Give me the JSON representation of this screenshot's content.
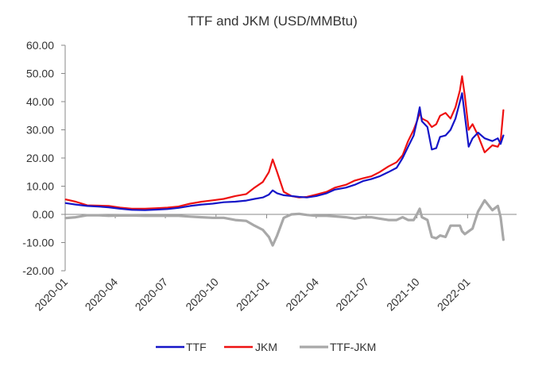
{
  "chart_data": {
    "type": "line",
    "title": "TTF and JKM (USD/MMBtu)",
    "xlabel": "",
    "ylabel": "",
    "ylim": [
      -20,
      60
    ],
    "yticks": [
      60,
      50,
      40,
      30,
      20,
      10,
      0,
      -10,
      -20
    ],
    "ytick_labels": [
      "60.00",
      "50.00",
      "40.00",
      "30.00",
      "20.00",
      "10.00",
      "0.00",
      "-10.00",
      "-20.00"
    ],
    "xlim": [
      "2020-01-01",
      "2022-03-31"
    ],
    "xticks": [
      "2020-01-01",
      "2020-04-01",
      "2020-07-01",
      "2020-10-01",
      "2021-01-01",
      "2021-04-01",
      "2021-07-01",
      "2021-10-01",
      "2022-01-01"
    ],
    "xtick_labels": [
      "2020-01",
      "2020-04",
      "2020-07",
      "2020-10",
      "2021-01",
      "2021-04",
      "2021-07",
      "2021-10",
      "2022-01"
    ],
    "grid": false,
    "legend_position": "bottom",
    "series": [
      {
        "name": "TTF",
        "color": "#1515c8",
        "points": [
          [
            "2020-01-02",
            4.0
          ],
          [
            "2020-01-20",
            3.5
          ],
          [
            "2020-02-10",
            3.0
          ],
          [
            "2020-03-01",
            2.8
          ],
          [
            "2020-03-20",
            2.5
          ],
          [
            "2020-04-10",
            2.0
          ],
          [
            "2020-05-01",
            1.6
          ],
          [
            "2020-05-25",
            1.5
          ],
          [
            "2020-06-15",
            1.7
          ],
          [
            "2020-07-05",
            1.9
          ],
          [
            "2020-07-25",
            2.3
          ],
          [
            "2020-08-15",
            3.0
          ],
          [
            "2020-09-05",
            3.5
          ],
          [
            "2020-09-25",
            3.8
          ],
          [
            "2020-10-15",
            4.3
          ],
          [
            "2020-11-05",
            4.5
          ],
          [
            "2020-11-25",
            4.9
          ],
          [
            "2020-12-10",
            5.5
          ],
          [
            "2020-12-25",
            6.0
          ],
          [
            "2021-01-05",
            7.0
          ],
          [
            "2021-01-12",
            8.5
          ],
          [
            "2021-01-20",
            7.5
          ],
          [
            "2021-02-01",
            6.8
          ],
          [
            "2021-02-15",
            6.5
          ],
          [
            "2021-03-01",
            6.2
          ],
          [
            "2021-03-15",
            6.0
          ],
          [
            "2021-04-01",
            6.5
          ],
          [
            "2021-04-20",
            7.5
          ],
          [
            "2021-05-05",
            8.8
          ],
          [
            "2021-05-25",
            9.5
          ],
          [
            "2021-06-10",
            10.5
          ],
          [
            "2021-06-25",
            11.8
          ],
          [
            "2021-07-10",
            12.5
          ],
          [
            "2021-07-25",
            13.5
          ],
          [
            "2021-08-10",
            15.0
          ],
          [
            "2021-08-25",
            16.5
          ],
          [
            "2021-09-05",
            20.0
          ],
          [
            "2021-09-15",
            24.0
          ],
          [
            "2021-09-25",
            28.0
          ],
          [
            "2021-10-01",
            33.0
          ],
          [
            "2021-10-06",
            38.0
          ],
          [
            "2021-10-10",
            33.0
          ],
          [
            "2021-10-20",
            31.0
          ],
          [
            "2021-10-28",
            23.0
          ],
          [
            "2021-11-05",
            23.5
          ],
          [
            "2021-11-12",
            27.5
          ],
          [
            "2021-11-22",
            28.0
          ],
          [
            "2021-12-01",
            30.0
          ],
          [
            "2021-12-10",
            34.0
          ],
          [
            "2021-12-18",
            40.0
          ],
          [
            "2021-12-22",
            43.0
          ],
          [
            "2021-12-27",
            35.0
          ],
          [
            "2022-01-03",
            24.0
          ],
          [
            "2022-01-10",
            27.0
          ],
          [
            "2022-01-20",
            29.0
          ],
          [
            "2022-02-01",
            27.0
          ],
          [
            "2022-02-15",
            26.0
          ],
          [
            "2022-02-25",
            27.0
          ],
          [
            "2022-03-02",
            25.0
          ],
          [
            "2022-03-07",
            28.0
          ]
        ]
      },
      {
        "name": "JKM",
        "color": "#ee1111",
        "points": [
          [
            "2020-01-02",
            5.3
          ],
          [
            "2020-01-20",
            4.5
          ],
          [
            "2020-02-10",
            3.2
          ],
          [
            "2020-03-01",
            3.1
          ],
          [
            "2020-03-20",
            3.0
          ],
          [
            "2020-04-10",
            2.4
          ],
          [
            "2020-05-01",
            2.0
          ],
          [
            "2020-05-25",
            2.0
          ],
          [
            "2020-06-15",
            2.2
          ],
          [
            "2020-07-05",
            2.4
          ],
          [
            "2020-07-25",
            2.8
          ],
          [
            "2020-08-15",
            3.8
          ],
          [
            "2020-09-05",
            4.5
          ],
          [
            "2020-09-25",
            5.0
          ],
          [
            "2020-10-15",
            5.5
          ],
          [
            "2020-11-05",
            6.5
          ],
          [
            "2020-11-25",
            7.2
          ],
          [
            "2020-12-10",
            9.5
          ],
          [
            "2020-12-25",
            11.5
          ],
          [
            "2021-01-05",
            15.0
          ],
          [
            "2021-01-12",
            19.5
          ],
          [
            "2021-01-20",
            15.0
          ],
          [
            "2021-02-01",
            8.0
          ],
          [
            "2021-02-15",
            6.5
          ],
          [
            "2021-03-01",
            6.0
          ],
          [
            "2021-03-15",
            6.2
          ],
          [
            "2021-04-01",
            7.0
          ],
          [
            "2021-04-20",
            8.0
          ],
          [
            "2021-05-05",
            9.5
          ],
          [
            "2021-05-25",
            10.5
          ],
          [
            "2021-06-10",
            12.0
          ],
          [
            "2021-06-25",
            12.8
          ],
          [
            "2021-07-10",
            13.5
          ],
          [
            "2021-07-25",
            15.0
          ],
          [
            "2021-08-10",
            17.0
          ],
          [
            "2021-08-25",
            18.5
          ],
          [
            "2021-09-05",
            21.0
          ],
          [
            "2021-09-15",
            26.0
          ],
          [
            "2021-09-25",
            30.0
          ],
          [
            "2021-10-01",
            33.0
          ],
          [
            "2021-10-06",
            36.0
          ],
          [
            "2021-10-10",
            34.0
          ],
          [
            "2021-10-20",
            33.0
          ],
          [
            "2021-10-28",
            31.0
          ],
          [
            "2021-11-05",
            32.0
          ],
          [
            "2021-11-12",
            35.0
          ],
          [
            "2021-11-22",
            36.0
          ],
          [
            "2021-12-01",
            34.0
          ],
          [
            "2021-12-10",
            38.0
          ],
          [
            "2021-12-18",
            44.0
          ],
          [
            "2021-12-22",
            49.0
          ],
          [
            "2021-12-27",
            42.0
          ],
          [
            "2022-01-03",
            30.0
          ],
          [
            "2022-01-10",
            32.0
          ],
          [
            "2022-01-20",
            28.0
          ],
          [
            "2022-02-01",
            22.0
          ],
          [
            "2022-02-15",
            24.5
          ],
          [
            "2022-02-25",
            24.0
          ],
          [
            "2022-03-02",
            26.0
          ],
          [
            "2022-03-07",
            37.0
          ]
        ]
      },
      {
        "name": "TTF-JKM",
        "color": "#a8a8a8",
        "points": [
          [
            "2020-01-02",
            -1.3
          ],
          [
            "2020-01-20",
            -1.0
          ],
          [
            "2020-02-10",
            -0.3
          ],
          [
            "2020-03-01",
            -0.3
          ],
          [
            "2020-03-20",
            -0.5
          ],
          [
            "2020-04-10",
            -0.4
          ],
          [
            "2020-05-01",
            -0.4
          ],
          [
            "2020-05-25",
            -0.5
          ],
          [
            "2020-06-15",
            -0.5
          ],
          [
            "2020-07-05",
            -0.5
          ],
          [
            "2020-07-25",
            -0.5
          ],
          [
            "2020-08-15",
            -0.8
          ],
          [
            "2020-09-05",
            -1.0
          ],
          [
            "2020-09-25",
            -1.2
          ],
          [
            "2020-10-15",
            -1.2
          ],
          [
            "2020-11-05",
            -2.0
          ],
          [
            "2020-11-25",
            -2.3
          ],
          [
            "2020-12-10",
            -4.0
          ],
          [
            "2020-12-25",
            -5.5
          ],
          [
            "2021-01-05",
            -8.0
          ],
          [
            "2021-01-12",
            -11.0
          ],
          [
            "2021-01-20",
            -7.5
          ],
          [
            "2021-02-01",
            -1.2
          ],
          [
            "2021-02-15",
            0.0
          ],
          [
            "2021-03-01",
            0.2
          ],
          [
            "2021-03-15",
            -0.2
          ],
          [
            "2021-04-01",
            -0.5
          ],
          [
            "2021-04-20",
            -0.5
          ],
          [
            "2021-05-05",
            -0.7
          ],
          [
            "2021-05-25",
            -1.0
          ],
          [
            "2021-06-10",
            -1.5
          ],
          [
            "2021-06-25",
            -1.0
          ],
          [
            "2021-07-10",
            -1.0
          ],
          [
            "2021-07-25",
            -1.5
          ],
          [
            "2021-08-10",
            -2.0
          ],
          [
            "2021-08-25",
            -2.0
          ],
          [
            "2021-09-05",
            -1.0
          ],
          [
            "2021-09-15",
            -2.0
          ],
          [
            "2021-09-25",
            -2.0
          ],
          [
            "2021-10-01",
            0.0
          ],
          [
            "2021-10-06",
            2.0
          ],
          [
            "2021-10-10",
            -1.0
          ],
          [
            "2021-10-20",
            -2.0
          ],
          [
            "2021-10-28",
            -8.0
          ],
          [
            "2021-11-05",
            -8.5
          ],
          [
            "2021-11-12",
            -7.5
          ],
          [
            "2021-11-22",
            -8.0
          ],
          [
            "2021-12-01",
            -4.0
          ],
          [
            "2021-12-10",
            -4.0
          ],
          [
            "2021-12-18",
            -4.0
          ],
          [
            "2021-12-22",
            -6.0
          ],
          [
            "2021-12-27",
            -7.0
          ],
          [
            "2022-01-03",
            -6.0
          ],
          [
            "2022-01-10",
            -5.0
          ],
          [
            "2022-01-20",
            1.0
          ],
          [
            "2022-02-01",
            5.0
          ],
          [
            "2022-02-15",
            1.5
          ],
          [
            "2022-02-25",
            3.0
          ],
          [
            "2022-03-02",
            -1.0
          ],
          [
            "2022-03-07",
            -9.0
          ]
        ]
      }
    ]
  }
}
